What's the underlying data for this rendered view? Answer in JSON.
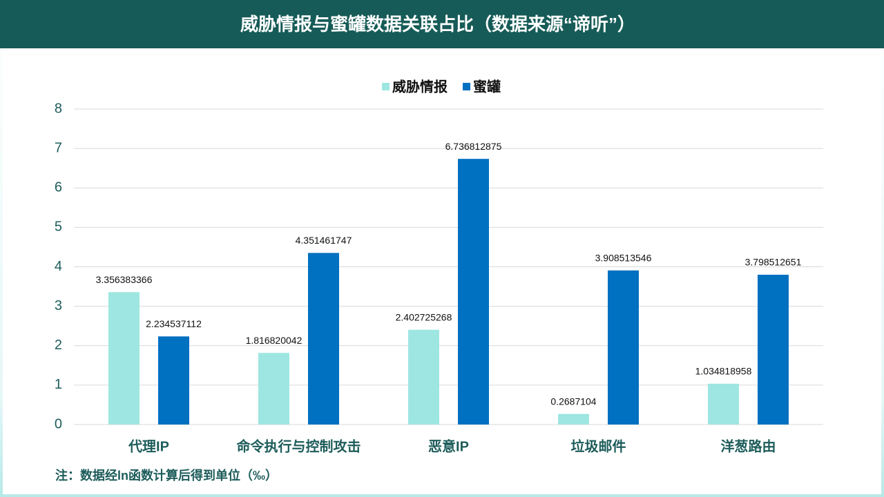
{
  "chart_data": {
    "type": "bar",
    "title": "威胁情报与蜜罐数据关联占比（数据来源“谛听”）",
    "categories": [
      "代理IP",
      "命令执行与控制攻击",
      "恶意IP",
      "垃圾邮件",
      "洋葱路由"
    ],
    "series": [
      {
        "name": "威胁情报",
        "color": "#9ee6e1",
        "values": [
          3.356383366,
          1.816820042,
          2.402725268,
          0.2687104,
          1.034818958
        ]
      },
      {
        "name": "蜜罐",
        "color": "#0070c0",
        "values": [
          2.234537112,
          4.351461747,
          6.736812875,
          3.908513546,
          3.798512651
        ]
      }
    ],
    "ylim": [
      0,
      8
    ],
    "yticks": [
      0,
      1,
      2,
      3,
      4,
      5,
      6,
      7,
      8
    ],
    "grid": true,
    "legend": "top",
    "note": "注：数据经ln函数计算后得到单位（‰）"
  }
}
